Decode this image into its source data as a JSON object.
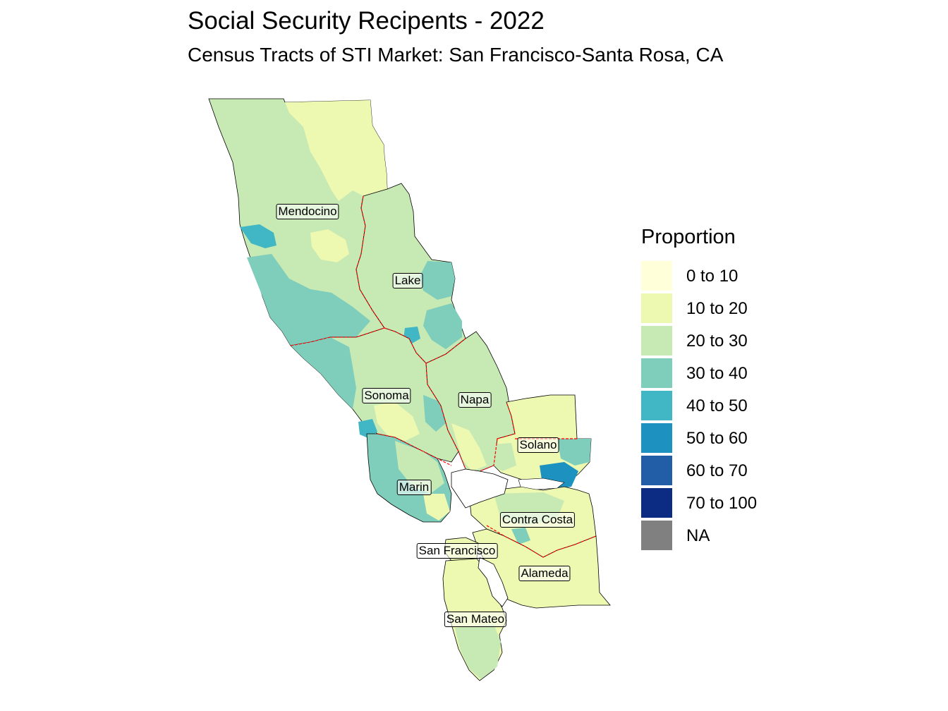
{
  "title": "Social Security Recipents - 2022",
  "subtitle": "Census Tracts of STI Market: San Francisco-Santa Rosa, CA",
  "legend": {
    "title": "Proportion",
    "items": [
      {
        "label": "0 to 10",
        "color": "#ffffd9"
      },
      {
        "label": "10 to 20",
        "color": "#edf8b1"
      },
      {
        "label": "20 to 30",
        "color": "#c7e9b4"
      },
      {
        "label": "30 to 40",
        "color": "#7fcdbb"
      },
      {
        "label": "40 to 50",
        "color": "#41b6c4"
      },
      {
        "label": "50 to 60",
        "color": "#1d91c0"
      },
      {
        "label": "60 to 70",
        "color": "#225ea8"
      },
      {
        "label": "70 to 100",
        "color": "#0c2c84"
      },
      {
        "label": "NA",
        "color": "#808080"
      }
    ]
  },
  "counties": {
    "mendocino": "Mendocino",
    "lake": "Lake",
    "sonoma": "Sonoma",
    "napa": "Napa",
    "solano": "Solano",
    "marin": "Marin",
    "contra_costa": "Contra Costa",
    "san_francisco": "San Francisco",
    "alameda": "Alameda",
    "san_mateo": "San Mateo"
  },
  "colors": {
    "county_boundary": "#ff0000",
    "water": "#ffffff",
    "outline": "#000000"
  }
}
